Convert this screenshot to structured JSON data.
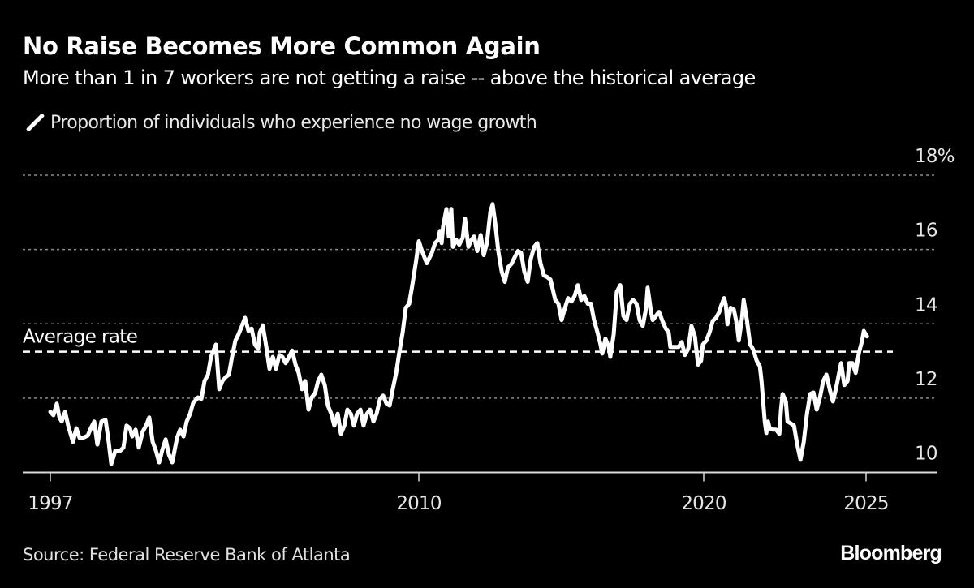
{
  "header": {
    "title": "No Raise Becomes More Common Again",
    "subtitle": "More than 1 in 7 workers are not getting a raise -- above the historical average"
  },
  "footer": {
    "source": "Source: Federal Reserve Bank of Atlanta",
    "brand": "Bloomberg"
  },
  "colors": {
    "background": "#000000",
    "line": "#ffffff",
    "grid": "#8c8c8c",
    "axis": "#d9d9d9",
    "text": "#ffffff"
  },
  "chart_data": {
    "type": "line",
    "title": "No Raise Becomes More Common Again",
    "subtitle": "More than 1 in 7 workers are not getting a raise -- above the historical average",
    "xlabel": "",
    "ylabel": "",
    "ylim": [
      10,
      18
    ],
    "y_ticks": [
      {
        "value": 10,
        "label": "10"
      },
      {
        "value": 12,
        "label": "12"
      },
      {
        "value": 14,
        "label": "14"
      },
      {
        "value": 16,
        "label": "16"
      },
      {
        "value": 18,
        "label": "18%"
      }
    ],
    "x_ticks": [
      {
        "value": 1997,
        "label": "1997"
      },
      {
        "value": 2010,
        "label": "2010"
      },
      {
        "value": 2020,
        "label": "2020"
      },
      {
        "value": 2025,
        "label": "2025"
      }
    ],
    "grid": true,
    "legend": {
      "position": "top-left",
      "entries": [
        "Proportion of individuals who experience no wage growth"
      ]
    },
    "reference_line": {
      "label": "Average rate",
      "value": 13.25,
      "style": "dashed"
    },
    "series": [
      {
        "name": "Proportion of individuals who experience no wage growth",
        "unit": "%",
        "x": [
          1997.0,
          1997.11,
          1997.23,
          1997.32,
          1997.4,
          1997.52,
          1997.63,
          1997.8,
          1997.92,
          1998.03,
          1998.15,
          1998.32,
          1998.43,
          1998.55,
          1998.66,
          1998.8,
          1998.95,
          1999.06,
          1999.15,
          1999.29,
          1999.46,
          1999.58,
          1999.69,
          1999.81,
          1999.89,
          2000.01,
          2000.12,
          2000.26,
          2000.38,
          2000.49,
          2000.61,
          2000.72,
          2000.84,
          2000.95,
          2001.07,
          2001.18,
          2001.3,
          2001.47,
          2001.58,
          2001.7,
          2001.81,
          2001.93,
          2002.04,
          2002.21,
          2002.33,
          2002.44,
          2002.56,
          2002.67,
          2002.84,
          2002.96,
          2003.07,
          2003.19,
          2003.3,
          2003.41,
          2003.53,
          2003.64,
          2003.76,
          2003.87,
          2003.99,
          2004.1,
          2004.22,
          2004.33,
          2004.39,
          2004.5,
          2004.62,
          2004.73,
          2004.85,
          2004.96,
          2005.08,
          2005.19,
          2005.3,
          2005.42,
          2005.53,
          2005.65,
          2005.76,
          2005.88,
          2005.99,
          2006.11,
          2006.22,
          2006.34,
          2006.45,
          2006.56,
          2006.68,
          2006.79,
          2006.91,
          2007.02,
          2007.14,
          2007.25,
          2007.37,
          2007.48,
          2007.6,
          2007.71,
          2007.82,
          2007.94,
          2008.05,
          2008.17,
          2008.28,
          2008.4,
          2008.51,
          2008.63,
          2008.74,
          2008.86,
          2008.97,
          2009.08,
          2009.2,
          2009.31,
          2009.43,
          2009.54,
          2009.66,
          2009.77,
          2009.89,
          2010.0,
          2010.11,
          2010.28,
          2010.46,
          2010.57,
          2010.68,
          2010.74,
          2010.8,
          2010.85,
          2010.97,
          2011.05,
          2011.14,
          2011.2,
          2011.31,
          2011.42,
          2011.54,
          2011.62,
          2011.74,
          2011.82,
          2011.94,
          2012.05,
          2012.17,
          2012.28,
          2012.39,
          2012.51,
          2012.59,
          2012.68,
          2012.79,
          2012.91,
          2013.02,
          2013.13,
          2013.25,
          2013.36,
          2013.48,
          2013.59,
          2013.7,
          2013.82,
          2013.93,
          2014.05,
          2014.16,
          2014.27,
          2014.39,
          2014.5,
          2014.62,
          2014.79,
          2014.9,
          2015.01,
          2015.13,
          2015.24,
          2015.36,
          2015.47,
          2015.58,
          2015.7,
          2015.81,
          2015.93,
          2016.04,
          2016.15,
          2016.27,
          2016.38,
          2016.44,
          2016.55,
          2016.67,
          2016.72,
          2016.84,
          2016.95,
          2017.07,
          2017.18,
          2017.29,
          2017.41,
          2017.52,
          2017.64,
          2017.75,
          2017.86,
          2017.98,
          2018.03,
          2018.15,
          2018.21,
          2018.32,
          2018.43,
          2018.55,
          2018.66,
          2018.77,
          2018.83,
          2019.0,
          2019.12,
          2019.23,
          2019.34,
          2019.46,
          2019.57,
          2019.69,
          2019.8,
          2019.91,
          2019.97,
          2020.08,
          2020.18,
          2020.28,
          2020.38,
          2020.48,
          2020.53,
          2020.63,
          2020.68,
          2020.73,
          2020.83,
          2020.93,
          2021.03,
          2021.08,
          2021.18,
          2021.23,
          2021.33,
          2021.43,
          2021.48,
          2021.53,
          2021.63,
          2021.73,
          2021.78,
          2021.88,
          2021.93,
          2021.98,
          2022.03,
          2022.13,
          2022.23,
          2022.33,
          2022.38,
          2022.43,
          2022.53,
          2022.58,
          2022.68,
          2022.78,
          2022.88,
          2022.98,
          2023.08,
          2023.18,
          2023.28,
          2023.38,
          2023.48,
          2023.58,
          2023.68,
          2023.78,
          2023.88,
          2023.98,
          2024.08,
          2024.18,
          2024.23,
          2024.33,
          2024.43,
          2024.48,
          2024.58,
          2024.68,
          2024.78,
          2024.88,
          2024.93,
          2025.03
        ],
        "values": [
          11.63,
          11.54,
          11.85,
          11.48,
          11.37,
          11.63,
          11.26,
          10.82,
          11.19,
          10.93,
          10.93,
          10.99,
          11.19,
          11.37,
          10.75,
          11.37,
          11.41,
          10.82,
          10.23,
          10.58,
          10.58,
          10.67,
          11.26,
          11.19,
          10.97,
          11.15,
          10.67,
          11.1,
          11.26,
          11.48,
          10.82,
          10.6,
          10.27,
          10.6,
          10.89,
          10.49,
          10.27,
          10.93,
          11.15,
          10.97,
          11.37,
          11.58,
          11.87,
          12.02,
          11.98,
          12.46,
          12.63,
          13.11,
          13.44,
          12.24,
          12.46,
          12.57,
          12.63,
          13.11,
          13.55,
          13.72,
          13.94,
          14.16,
          13.81,
          13.87,
          13.44,
          13.33,
          13.77,
          13.94,
          13.38,
          12.79,
          13.11,
          12.79,
          13.16,
          13.11,
          12.94,
          13.11,
          13.28,
          12.9,
          12.68,
          12.24,
          12.46,
          11.69,
          12.02,
          12.13,
          12.46,
          12.63,
          12.35,
          11.8,
          11.58,
          11.26,
          11.58,
          11.04,
          11.26,
          11.69,
          11.58,
          11.26,
          11.58,
          11.69,
          11.26,
          11.58,
          11.69,
          11.37,
          11.58,
          11.98,
          12.07,
          11.85,
          11.8,
          12.24,
          12.68,
          13.22,
          13.77,
          14.43,
          14.54,
          15.04,
          15.63,
          16.22,
          15.96,
          15.63,
          15.91,
          16.17,
          16.26,
          16.5,
          16.17,
          16.61,
          17.09,
          16.35,
          17.09,
          16.07,
          16.26,
          16.13,
          16.31,
          16.83,
          16.07,
          16.22,
          16.35,
          15.96,
          16.39,
          15.85,
          16.17,
          17.01,
          17.22,
          16.72,
          15.96,
          15.41,
          15.13,
          15.52,
          15.61,
          15.78,
          15.96,
          15.91,
          15.41,
          15.13,
          15.74,
          16.07,
          16.17,
          15.63,
          15.3,
          15.26,
          15.19,
          14.64,
          14.54,
          14.1,
          14.43,
          14.69,
          14.6,
          14.75,
          15.04,
          14.64,
          14.75,
          14.54,
          14.54,
          14.1,
          13.77,
          13.44,
          13.2,
          13.6,
          13.38,
          13.11,
          13.72,
          14.86,
          15.04,
          14.21,
          14.1,
          14.54,
          14.64,
          14.54,
          14.1,
          13.94,
          14.43,
          14.97,
          14.32,
          14.1,
          14.21,
          14.32,
          14.08,
          13.88,
          13.77,
          13.38,
          13.38,
          13.38,
          13.51,
          13.16,
          13.33,
          13.94,
          13.66,
          12.9,
          13.01,
          13.44,
          13.55,
          13.77,
          14.08,
          14.16,
          14.32,
          14.47,
          14.69,
          14.51,
          13.99,
          14.43,
          14.38,
          13.94,
          13.55,
          14.16,
          14.64,
          14.1,
          13.44,
          13.38,
          13.29,
          13.01,
          12.85,
          12.46,
          11.37,
          11.06,
          11.37,
          11.19,
          11.15,
          11.15,
          11.04,
          11.69,
          12.11,
          11.91,
          11.37,
          11.32,
          11.26,
          10.75,
          10.34,
          10.82,
          11.58,
          12.11,
          12.15,
          11.69,
          12.02,
          12.46,
          12.63,
          12.24,
          11.91,
          12.28,
          12.72,
          12.94,
          12.35,
          12.46,
          12.94,
          12.94,
          12.68,
          13.22,
          13.55,
          13.81,
          13.66
        ]
      }
    ]
  }
}
